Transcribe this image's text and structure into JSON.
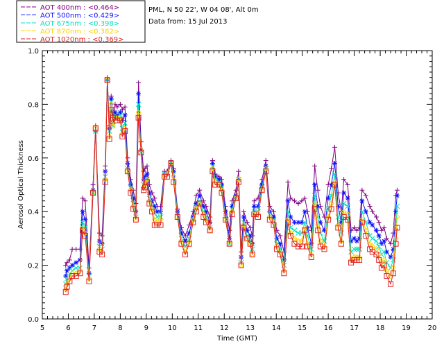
{
  "chart_data": {
    "type": "line",
    "title": "",
    "xlabel": "Time (GMT)",
    "ylabel": "Aerosol Optical Thickness",
    "xlim": [
      5,
      20
    ],
    "ylim": [
      0.0,
      1.0
    ],
    "x_ticks": [
      "5",
      "6",
      "7",
      "8",
      "9",
      "10",
      "11",
      "12",
      "13",
      "14",
      "15",
      "16",
      "17",
      "18",
      "19",
      "20"
    ],
    "y_ticks": [
      "0.0",
      "0.2",
      "0.4",
      "0.6",
      "0.8",
      "1.0"
    ],
    "info_lines": [
      "PML, N 50 22', W 04 08', Alt 0m",
      "Data from: 15 Jul 2013"
    ],
    "legend_position": "top-left",
    "x": [
      5.9,
      5.95,
      6.05,
      6.15,
      6.3,
      6.45,
      6.55,
      6.65,
      6.8,
      6.95,
      7.05,
      7.2,
      7.3,
      7.42,
      7.5,
      7.58,
      7.65,
      7.72,
      7.8,
      7.88,
      8.0,
      8.08,
      8.18,
      8.28,
      8.4,
      8.5,
      8.6,
      8.7,
      8.8,
      8.9,
      8.95,
      9.03,
      9.12,
      9.22,
      9.32,
      9.42,
      9.55,
      9.7,
      9.8,
      9.95,
      10.05,
      10.2,
      10.35,
      10.5,
      10.65,
      10.8,
      10.92,
      11.05,
      11.2,
      11.3,
      11.45,
      11.55,
      11.65,
      11.8,
      11.9,
      12.05,
      12.2,
      12.3,
      12.45,
      12.55,
      12.65,
      12.75,
      12.88,
      13.0,
      13.08,
      13.15,
      13.3,
      13.45,
      13.6,
      13.75,
      13.9,
      14.02,
      14.15,
      14.3,
      14.45,
      14.55,
      14.7,
      14.85,
      14.98,
      15.1,
      15.2,
      15.35,
      15.48,
      15.6,
      15.7,
      15.85,
      16.0,
      16.12,
      16.25,
      16.38,
      16.5,
      16.6,
      16.75,
      16.88,
      17.0,
      17.1,
      17.2,
      17.3,
      17.45,
      17.6,
      17.7,
      17.85,
      17.95,
      18.05,
      18.15,
      18.25,
      18.4,
      18.5,
      18.6,
      18.65
    ],
    "series": [
      {
        "name": "AOT 400nm",
        "label": "AOT  400nm  : <0.464>",
        "color": "#800080",
        "marker": "plus",
        "values": [
          0.2,
          0.21,
          0.22,
          0.26,
          0.26,
          0.26,
          0.45,
          0.44,
          0.19,
          0.5,
          0.72,
          0.32,
          0.31,
          0.57,
          0.9,
          0.72,
          0.83,
          0.75,
          0.8,
          0.79,
          0.8,
          0.78,
          0.79,
          0.6,
          0.52,
          0.48,
          0.43,
          0.88,
          0.66,
          0.55,
          0.56,
          0.57,
          0.5,
          0.47,
          0.45,
          0.42,
          0.42,
          0.55,
          0.55,
          0.59,
          0.56,
          0.41,
          0.34,
          0.31,
          0.35,
          0.4,
          0.46,
          0.48,
          0.44,
          0.42,
          0.38,
          0.59,
          0.54,
          0.53,
          0.52,
          0.42,
          0.33,
          0.44,
          0.48,
          0.55,
          0.25,
          0.4,
          0.36,
          0.34,
          0.31,
          0.44,
          0.45,
          0.52,
          0.59,
          0.42,
          0.4,
          0.33,
          0.31,
          0.25,
          0.51,
          0.45,
          0.44,
          0.43,
          0.44,
          0.45,
          0.4,
          0.33,
          0.57,
          0.48,
          0.42,
          0.38,
          0.5,
          0.56,
          0.64,
          0.47,
          0.4,
          0.52,
          0.5,
          0.33,
          0.34,
          0.33,
          0.34,
          0.48,
          0.46,
          0.42,
          0.4,
          0.38,
          0.36,
          0.33,
          0.34,
          0.3,
          0.28,
          0.32,
          0.46,
          0.48
        ]
      },
      {
        "name": "AOT 500nm",
        "label": "AOT  500nm  : <0.429>",
        "color": "#1010ff",
        "marker": "star",
        "values": [
          0.16,
          0.18,
          0.19,
          0.2,
          0.21,
          0.22,
          0.4,
          0.37,
          0.17,
          0.48,
          0.7,
          0.29,
          0.28,
          0.55,
          0.89,
          0.71,
          0.82,
          0.73,
          0.77,
          0.76,
          0.77,
          0.74,
          0.76,
          0.58,
          0.5,
          0.45,
          0.4,
          0.84,
          0.63,
          0.52,
          0.53,
          0.54,
          0.47,
          0.44,
          0.42,
          0.4,
          0.4,
          0.54,
          0.54,
          0.58,
          0.55,
          0.4,
          0.32,
          0.29,
          0.32,
          0.38,
          0.43,
          0.46,
          0.42,
          0.4,
          0.36,
          0.58,
          0.53,
          0.52,
          0.5,
          0.4,
          0.3,
          0.42,
          0.46,
          0.52,
          0.23,
          0.38,
          0.33,
          0.31,
          0.28,
          0.42,
          0.42,
          0.5,
          0.57,
          0.4,
          0.38,
          0.3,
          0.28,
          0.22,
          0.44,
          0.38,
          0.36,
          0.36,
          0.36,
          0.4,
          0.34,
          0.28,
          0.5,
          0.42,
          0.36,
          0.33,
          0.45,
          0.5,
          0.58,
          0.42,
          0.36,
          0.47,
          0.45,
          0.29,
          0.3,
          0.29,
          0.3,
          0.44,
          0.4,
          0.36,
          0.35,
          0.33,
          0.31,
          0.28,
          0.29,
          0.25,
          0.23,
          0.26,
          0.4,
          0.46
        ]
      },
      {
        "name": "AOT 675nm",
        "label": "AOT  675nm  : <0.398>",
        "color": "#00e0c0",
        "marker": "cross",
        "values": [
          0.13,
          0.15,
          0.16,
          0.18,
          0.19,
          0.19,
          0.36,
          0.34,
          0.16,
          0.47,
          0.7,
          0.27,
          0.26,
          0.53,
          0.89,
          0.7,
          0.81,
          0.72,
          0.76,
          0.75,
          0.76,
          0.71,
          0.73,
          0.56,
          0.49,
          0.43,
          0.38,
          0.8,
          0.62,
          0.5,
          0.51,
          0.52,
          0.45,
          0.42,
          0.4,
          0.38,
          0.38,
          0.54,
          0.54,
          0.58,
          0.54,
          0.39,
          0.3,
          0.27,
          0.3,
          0.37,
          0.42,
          0.44,
          0.4,
          0.38,
          0.34,
          0.57,
          0.52,
          0.51,
          0.49,
          0.38,
          0.28,
          0.41,
          0.45,
          0.52,
          0.21,
          0.36,
          0.31,
          0.29,
          0.26,
          0.4,
          0.4,
          0.49,
          0.56,
          0.39,
          0.37,
          0.28,
          0.26,
          0.2,
          0.4,
          0.34,
          0.33,
          0.32,
          0.32,
          0.36,
          0.31,
          0.26,
          0.46,
          0.38,
          0.32,
          0.29,
          0.41,
          0.46,
          0.54,
          0.38,
          0.32,
          0.43,
          0.42,
          0.25,
          0.26,
          0.26,
          0.26,
          0.4,
          0.36,
          0.31,
          0.3,
          0.29,
          0.27,
          0.24,
          0.25,
          0.21,
          0.19,
          0.22,
          0.34,
          0.42
        ]
      },
      {
        "name": "AOT 870nm",
        "label": "AOT  870nm  : <0.382>",
        "color": "#ffd000",
        "marker": "diamond",
        "values": [
          0.11,
          0.13,
          0.15,
          0.17,
          0.17,
          0.18,
          0.34,
          0.32,
          0.15,
          0.47,
          0.71,
          0.26,
          0.25,
          0.52,
          0.89,
          0.68,
          0.8,
          0.72,
          0.75,
          0.75,
          0.75,
          0.69,
          0.71,
          0.55,
          0.48,
          0.42,
          0.37,
          0.77,
          0.63,
          0.49,
          0.5,
          0.52,
          0.44,
          0.41,
          0.37,
          0.36,
          0.37,
          0.53,
          0.54,
          0.58,
          0.53,
          0.38,
          0.29,
          0.25,
          0.29,
          0.37,
          0.41,
          0.43,
          0.39,
          0.37,
          0.33,
          0.56,
          0.51,
          0.5,
          0.48,
          0.37,
          0.28,
          0.4,
          0.45,
          0.52,
          0.2,
          0.35,
          0.3,
          0.28,
          0.24,
          0.39,
          0.39,
          0.48,
          0.56,
          0.38,
          0.36,
          0.27,
          0.25,
          0.18,
          0.37,
          0.32,
          0.3,
          0.29,
          0.29,
          0.34,
          0.28,
          0.24,
          0.43,
          0.35,
          0.29,
          0.27,
          0.38,
          0.43,
          0.51,
          0.35,
          0.29,
          0.4,
          0.39,
          0.22,
          0.23,
          0.23,
          0.23,
          0.37,
          0.33,
          0.28,
          0.27,
          0.26,
          0.24,
          0.21,
          0.22,
          0.18,
          0.16,
          0.19,
          0.3,
          0.38
        ]
      },
      {
        "name": "AOT 1020nm",
        "label": "AOT 1020nm  : <0.369>",
        "color": "#e02020",
        "marker": "square",
        "values": [
          0.1,
          0.12,
          0.14,
          0.16,
          0.16,
          0.17,
          0.33,
          0.31,
          0.14,
          0.47,
          0.71,
          0.25,
          0.24,
          0.51,
          0.89,
          0.67,
          0.78,
          0.75,
          0.75,
          0.74,
          0.74,
          0.68,
          0.7,
          0.55,
          0.47,
          0.41,
          0.37,
          0.75,
          0.62,
          0.48,
          0.49,
          0.51,
          0.43,
          0.4,
          0.35,
          0.35,
          0.35,
          0.53,
          0.53,
          0.58,
          0.51,
          0.38,
          0.28,
          0.24,
          0.28,
          0.36,
          0.4,
          0.43,
          0.38,
          0.36,
          0.33,
          0.55,
          0.5,
          0.5,
          0.47,
          0.37,
          0.28,
          0.39,
          0.45,
          0.51,
          0.2,
          0.34,
          0.3,
          0.28,
          0.24,
          0.39,
          0.38,
          0.48,
          0.55,
          0.37,
          0.35,
          0.26,
          0.24,
          0.17,
          0.36,
          0.31,
          0.28,
          0.27,
          0.27,
          0.33,
          0.27,
          0.23,
          0.41,
          0.33,
          0.27,
          0.26,
          0.37,
          0.41,
          0.5,
          0.34,
          0.28,
          0.38,
          0.37,
          0.21,
          0.22,
          0.22,
          0.22,
          0.36,
          0.31,
          0.26,
          0.25,
          0.24,
          0.22,
          0.19,
          0.2,
          0.16,
          0.13,
          0.17,
          0.28,
          0.34
        ]
      }
    ]
  }
}
